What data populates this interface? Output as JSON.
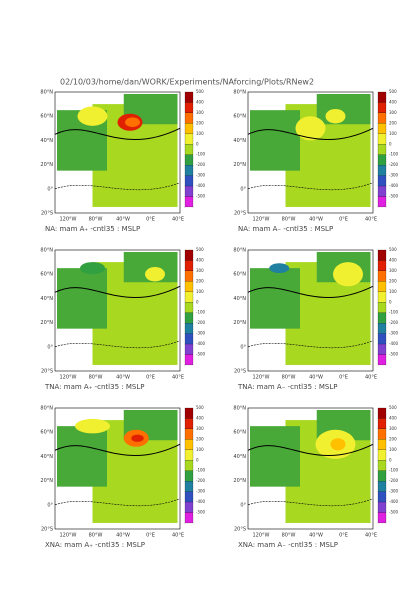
{
  "header": "02/10/03/home/dan/WORK/Experiments/NAforcing/Plots/RNew2",
  "lat_labels": [
    "80°N",
    "60°N",
    "40°N",
    "20°N",
    "0°",
    "20°S"
  ],
  "lon_labels": [
    "120°W",
    "80°W",
    "40°W",
    "0°E",
    "40°E"
  ],
  "colorbar": {
    "labels": [
      "500",
      "400",
      "300",
      "200",
      "100",
      "0",
      "-100",
      "-200",
      "-300",
      "-400",
      "-500"
    ],
    "colors": [
      "#a00000",
      "#e02000",
      "#ff7000",
      "#ffc000",
      "#f0f030",
      "#a8d820",
      "#30a040",
      "#2080a0",
      "#3050c0",
      "#8040d0",
      "#e020e0"
    ]
  },
  "captions": [
    "NA: mam A₊ -cntl35 : MSLP",
    "NA: mam A₋ -cntl35 : MSLP",
    "TNA: mam A₊ -cntl35 : MSLP",
    "TNA: mam A₋ -cntl35 : MSLP",
    "XNA: mam A₊ -cntl35 : MSLP",
    "XNA: mam A₋ -cntl35 : MSLP"
  ]
}
